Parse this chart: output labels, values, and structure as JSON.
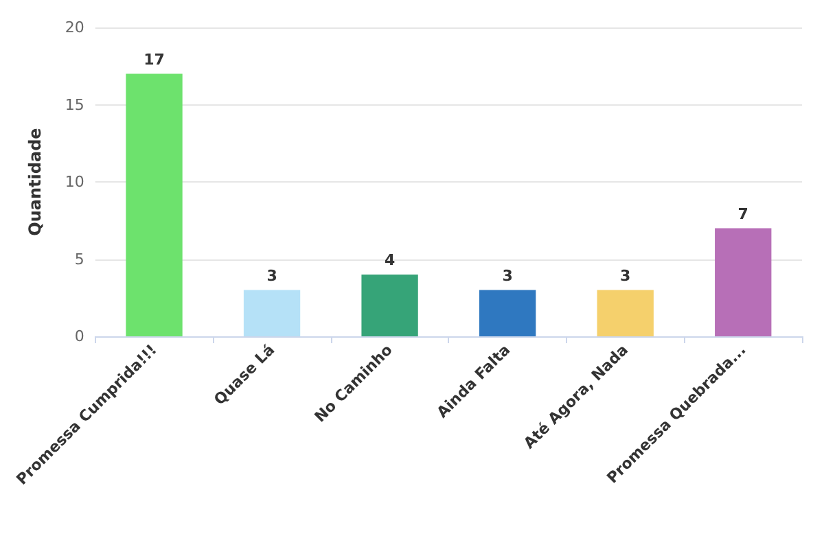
{
  "chart_data": {
    "type": "bar",
    "ylabel": "Quantidade",
    "categories": [
      "Promessa Cumprida!!!",
      "Quase Lá",
      "No Caminho",
      "Ainda Falta",
      "Até Agora, Nada",
      "Promessa Quebrada..."
    ],
    "values": [
      17,
      3,
      4,
      3,
      3,
      7
    ],
    "colors": [
      "#6de26d",
      "#b5e1f7",
      "#36a478",
      "#2f78c0",
      "#f5d06c",
      "#b76fb7"
    ],
    "ylim": [
      0,
      20
    ],
    "yticks": [
      0,
      5,
      10,
      15,
      20
    ],
    "grid": "y",
    "data_labels": true
  }
}
